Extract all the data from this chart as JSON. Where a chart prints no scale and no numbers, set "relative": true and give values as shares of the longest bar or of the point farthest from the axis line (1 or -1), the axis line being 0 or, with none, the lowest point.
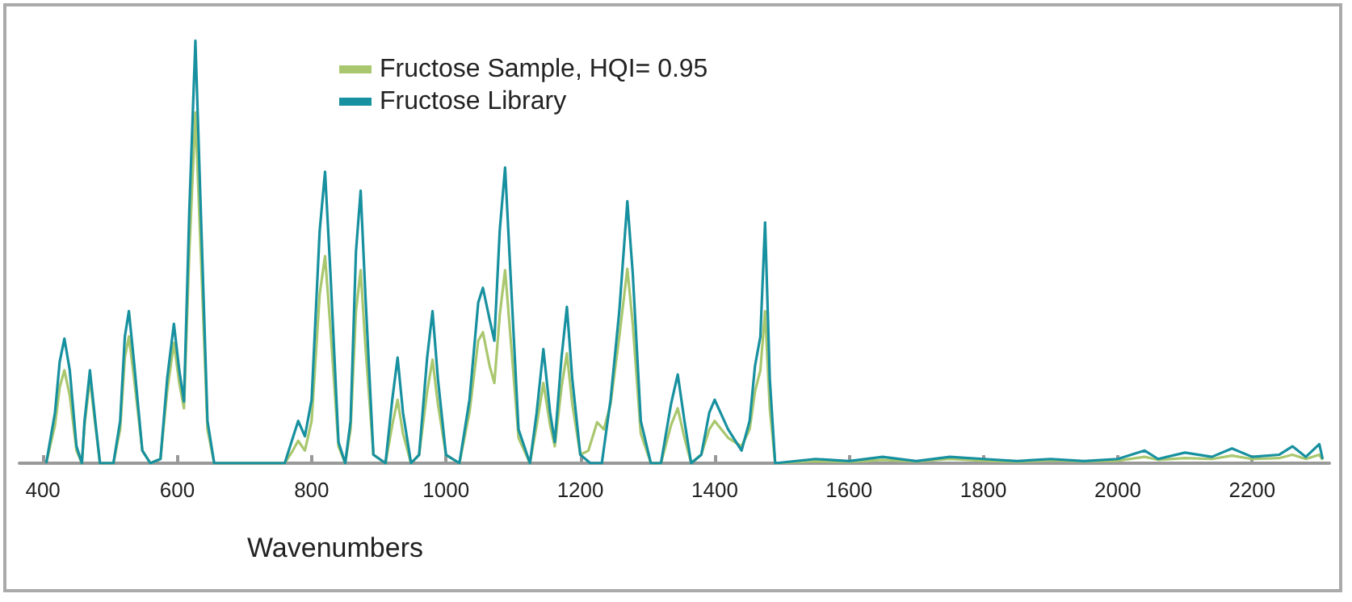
{
  "chart_data": {
    "type": "line",
    "xlabel": "Wavenumbers",
    "relative": true,
    "xlim": [
      365,
      2315
    ],
    "xticks": [
      400,
      600,
      800,
      1000,
      1200,
      1400,
      1600,
      1800,
      2000,
      2200
    ],
    "grid": false,
    "legend": "top",
    "marker": "none",
    "line_style": "solid",
    "series": [
      {
        "name": "Fructose Sample, HQI= 0.95",
        "color": "#a9c76e",
        "x": [
          405,
          418,
          425,
          432,
          440,
          450,
          458,
          462,
          470,
          478,
          485,
          505,
          515,
          522,
          528,
          535,
          548,
          560,
          575,
          585,
          595,
          603,
          610,
          618,
          627,
          635,
          645,
          655,
          760,
          772,
          780,
          790,
          800,
          812,
          820,
          828,
          840,
          850,
          858,
          866,
          873,
          880,
          892,
          910,
          920,
          928,
          936,
          948,
          960,
          972,
          980,
          988,
          1000,
          1020,
          1035,
          1048,
          1055,
          1065,
          1072,
          1080,
          1088,
          1096,
          1108,
          1125,
          1135,
          1145,
          1155,
          1162,
          1172,
          1180,
          1188,
          1200,
          1212,
          1225,
          1235,
          1245,
          1258,
          1270,
          1278,
          1290,
          1305,
          1320,
          1335,
          1345,
          1355,
          1365,
          1380,
          1392,
          1400,
          1420,
          1440,
          1452,
          1460,
          1468,
          1475,
          1482,
          1490,
          1550,
          1600,
          1650,
          1700,
          1750,
          1800,
          1850,
          1900,
          1950,
          2000,
          2040,
          2060,
          2100,
          2140,
          2170,
          2200,
          2240,
          2260,
          2280,
          2300,
          2305
        ],
        "values": [
          0,
          0.09,
          0.18,
          0.22,
          0.16,
          0.03,
          0,
          0.09,
          0.2,
          0.09,
          0,
          0,
          0.08,
          0.25,
          0.3,
          0.21,
          0.03,
          0,
          0.01,
          0.17,
          0.285,
          0.19,
          0.13,
          0.5,
          0.83,
          0.5,
          0.08,
          0,
          0,
          0.03,
          0.053,
          0.03,
          0.1,
          0.4,
          0.49,
          0.32,
          0.04,
          0,
          0.08,
          0.36,
          0.457,
          0.28,
          0.02,
          0,
          0.09,
          0.15,
          0.07,
          0,
          0.02,
          0.17,
          0.245,
          0.14,
          0.02,
          0,
          0.12,
          0.29,
          0.31,
          0.23,
          0.19,
          0.35,
          0.457,
          0.3,
          0.06,
          0,
          0.09,
          0.19,
          0.09,
          0.04,
          0.18,
          0.26,
          0.14,
          0.02,
          0.03,
          0.097,
          0.08,
          0.14,
          0.3,
          0.46,
          0.33,
          0.07,
          0,
          0,
          0.09,
          0.13,
          0.06,
          0,
          0.02,
          0.08,
          0.1,
          0.06,
          0.04,
          0.08,
          0.17,
          0.22,
          0.36,
          0.13,
          0,
          0.005,
          0.003,
          0.008,
          0.004,
          0.01,
          0.006,
          0.003,
          0.007,
          0.004,
          0.006,
          0.015,
          0.008,
          0.012,
          0.01,
          0.018,
          0.01,
          0.012,
          0.02,
          0.01,
          0.02,
          0.008
        ]
      },
      {
        "name": "Fructose Library",
        "color": "#17909f",
        "x": [
          405,
          418,
          425,
          432,
          440,
          450,
          458,
          462,
          470,
          478,
          485,
          505,
          515,
          522,
          528,
          535,
          548,
          560,
          575,
          585,
          595,
          603,
          610,
          618,
          627,
          635,
          645,
          655,
          760,
          772,
          780,
          790,
          800,
          812,
          820,
          828,
          840,
          850,
          858,
          866,
          873,
          880,
          892,
          910,
          920,
          928,
          936,
          948,
          960,
          972,
          980,
          988,
          1000,
          1020,
          1035,
          1048,
          1055,
          1065,
          1072,
          1080,
          1088,
          1096,
          1108,
          1125,
          1135,
          1145,
          1155,
          1162,
          1172,
          1180,
          1188,
          1200,
          1215,
          1232,
          1245,
          1258,
          1270,
          1278,
          1290,
          1305,
          1320,
          1335,
          1345,
          1355,
          1365,
          1380,
          1392,
          1400,
          1420,
          1440,
          1452,
          1460,
          1468,
          1475,
          1482,
          1490,
          1550,
          1600,
          1650,
          1700,
          1750,
          1800,
          1850,
          1900,
          1950,
          2000,
          2040,
          2060,
          2100,
          2140,
          2170,
          2200,
          2240,
          2260,
          2280,
          2300,
          2305
        ],
        "values": [
          0,
          0.12,
          0.24,
          0.295,
          0.22,
          0.04,
          0,
          0.1,
          0.22,
          0.1,
          0,
          0,
          0.1,
          0.3,
          0.36,
          0.25,
          0.03,
          0,
          0.01,
          0.2,
          0.33,
          0.22,
          0.146,
          0.6,
          1.0,
          0.6,
          0.1,
          0,
          0,
          0.06,
          0.1,
          0.064,
          0.15,
          0.55,
          0.69,
          0.45,
          0.05,
          0,
          0.1,
          0.5,
          0.645,
          0.4,
          0.02,
          0,
          0.15,
          0.25,
          0.12,
          0,
          0.02,
          0.25,
          0.36,
          0.2,
          0.02,
          0,
          0.15,
          0.38,
          0.415,
          0.34,
          0.29,
          0.55,
          0.7,
          0.45,
          0.08,
          0,
          0.12,
          0.27,
          0.12,
          0.05,
          0.25,
          0.37,
          0.2,
          0.02,
          0,
          0,
          0.15,
          0.36,
          0.62,
          0.45,
          0.1,
          0,
          0,
          0.14,
          0.21,
          0.1,
          0,
          0.02,
          0.12,
          0.15,
          0.08,
          0.03,
          0.1,
          0.23,
          0.3,
          0.57,
          0.2,
          0,
          0.01,
          0.005,
          0.015,
          0.005,
          0.015,
          0.01,
          0.005,
          0.01,
          0.005,
          0.01,
          0.03,
          0.01,
          0.025,
          0.015,
          0.035,
          0.015,
          0.02,
          0.04,
          0.015,
          0.045,
          0.01
        ]
      }
    ]
  }
}
